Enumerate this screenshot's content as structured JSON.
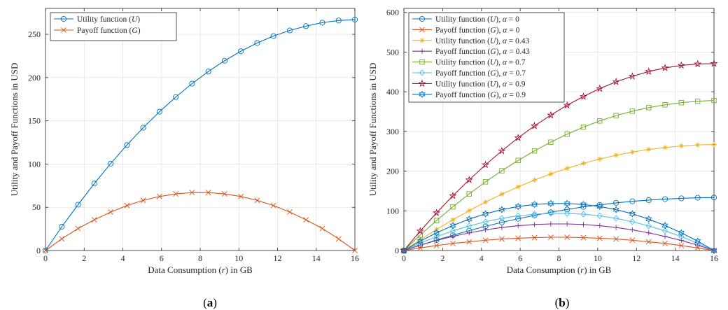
{
  "chart_data": [
    {
      "type": "line",
      "panel_label": "(a)",
      "xlabel": "Data Consumption (r) in GB",
      "ylabel": "Utility and Payoff Functions in USD",
      "xlim": [
        0,
        16
      ],
      "ylim": [
        0,
        280
      ],
      "xticks": [
        0,
        2,
        4,
        6,
        8,
        10,
        12,
        14,
        16
      ],
      "yticks": [
        0,
        50,
        100,
        150,
        200,
        250
      ],
      "grid": true,
      "legend_position": "top-left",
      "series": [
        {
          "name": "Utility function (U)",
          "color": "#0072bd",
          "marker": "circle",
          "x": [
            0,
            0.842,
            1.684,
            2.526,
            3.368,
            4.211,
            5.053,
            5.895,
            6.737,
            7.579,
            8.421,
            9.263,
            10.105,
            10.947,
            11.789,
            12.632,
            13.474,
            14.316,
            15.158,
            16
          ],
          "values": [
            0,
            27.5,
            53,
            77.5,
            100.5,
            122,
            142,
            160.5,
            177.5,
            193,
            207,
            219.5,
            230.5,
            240,
            248,
            254.5,
            259.5,
            263.5,
            266,
            267
          ]
        },
        {
          "name": "Payoff function (G)",
          "color": "#d95319",
          "marker": "x",
          "x": [
            0,
            0.842,
            1.684,
            2.526,
            3.368,
            4.211,
            5.053,
            5.895,
            6.737,
            7.579,
            8.421,
            9.263,
            10.105,
            10.947,
            11.789,
            12.632,
            13.474,
            14.316,
            15.158,
            16
          ],
          "values": [
            0,
            13.5,
            25.5,
            35.5,
            44.5,
            52,
            58,
            62.5,
            65.5,
            67,
            67,
            65.5,
            62.5,
            58,
            52,
            44.5,
            35.5,
            25.5,
            13.5,
            0
          ]
        }
      ]
    },
    {
      "type": "line",
      "panel_label": "(b)",
      "xlabel": "Data Consumption (r) in GB",
      "ylabel": "Utility and Payoff Functions in USD",
      "xlim": [
        0,
        16
      ],
      "ylim": [
        0,
        610
      ],
      "xticks": [
        0,
        2,
        4,
        6,
        8,
        10,
        12,
        14,
        16
      ],
      "yticks": [
        0,
        100,
        200,
        300,
        400,
        500,
        600
      ],
      "grid": true,
      "legend_position": "top-left",
      "series": [
        {
          "name": "Utility function (U), α = 0",
          "color": "#0072bd",
          "marker": "circle",
          "x": [
            0,
            0.842,
            1.684,
            2.526,
            3.368,
            4.211,
            5.053,
            5.895,
            6.737,
            7.579,
            8.421,
            9.263,
            10.105,
            10.947,
            11.789,
            12.632,
            13.474,
            14.316,
            15.158,
            16
          ],
          "values": [
            0,
            13.5,
            26.5,
            38.5,
            50,
            61,
            71,
            80,
            88.5,
            96.5,
            103.5,
            110,
            115,
            120,
            124,
            127,
            129.5,
            131.5,
            133,
            133.5
          ]
        },
        {
          "name": "Payoff function (G), α = 0",
          "color": "#d95319",
          "marker": "x",
          "x": [
            0,
            0.842,
            1.684,
            2.526,
            3.368,
            4.211,
            5.053,
            5.895,
            6.737,
            7.579,
            8.421,
            9.263,
            10.105,
            10.947,
            11.789,
            12.632,
            13.474,
            14.316,
            15.158,
            16
          ],
          "values": [
            0,
            6.5,
            12.5,
            18,
            22,
            26,
            29,
            31,
            32.5,
            33.5,
            33.5,
            32.5,
            31,
            29,
            26,
            22,
            18,
            12.5,
            6.5,
            0
          ]
        },
        {
          "name": "Utility function (U), α = 0.43",
          "color": "#edb120",
          "marker": "asterisk",
          "x": [
            0,
            0.842,
            1.684,
            2.526,
            3.368,
            4.211,
            5.053,
            5.895,
            6.737,
            7.579,
            8.421,
            9.263,
            10.105,
            10.947,
            11.789,
            12.632,
            13.474,
            14.316,
            15.158,
            16
          ],
          "values": [
            0,
            27.5,
            53,
            77.5,
            100.5,
            122,
            142,
            160.5,
            177.5,
            193,
            207,
            219.5,
            230.5,
            240,
            248,
            254.5,
            259.5,
            263.5,
            266,
            267
          ]
        },
        {
          "name": "Payoff function (G), α = 0.43",
          "color": "#7e2f8e",
          "marker": "plus",
          "x": [
            0,
            0.842,
            1.684,
            2.526,
            3.368,
            4.211,
            5.053,
            5.895,
            6.737,
            7.579,
            8.421,
            9.263,
            10.105,
            10.947,
            11.789,
            12.632,
            13.474,
            14.316,
            15.158,
            16
          ],
          "values": [
            0,
            13.5,
            25.5,
            35.5,
            44.5,
            52,
            58,
            62.5,
            65.5,
            67,
            67,
            65.5,
            62.5,
            58,
            52,
            44.5,
            35.5,
            25.5,
            13.5,
            0
          ]
        },
        {
          "name": "Utility function (U), α = 0.7",
          "color": "#77ac30",
          "marker": "square",
          "x": [
            0,
            0.842,
            1.684,
            2.526,
            3.368,
            4.211,
            5.053,
            5.895,
            6.737,
            7.579,
            8.421,
            9.263,
            10.105,
            10.947,
            11.789,
            12.632,
            13.474,
            14.316,
            15.158,
            16
          ],
          "values": [
            0,
            39,
            75.5,
            110,
            142.5,
            173,
            201,
            227,
            251,
            273,
            293,
            311,
            326.5,
            340,
            351,
            360,
            367,
            372.5,
            376,
            378
          ]
        },
        {
          "name": "Payoff function (G), α = 0.7",
          "color": "#4dbeee",
          "marker": "diamond",
          "x": [
            0,
            0.842,
            1.684,
            2.526,
            3.368,
            4.211,
            5.053,
            5.895,
            6.737,
            7.579,
            8.421,
            9.263,
            10.105,
            10.947,
            11.789,
            12.632,
            13.474,
            14.316,
            15.158,
            16
          ],
          "values": [
            0,
            18.5,
            35,
            49.5,
            62,
            72.5,
            81,
            87.5,
            91.5,
            93.5,
            93.5,
            91.5,
            87.5,
            81,
            72.5,
            62,
            49.5,
            35,
            18.5,
            0
          ]
        },
        {
          "name": "Utility function (U), α = 0.9",
          "color": "#a2142f",
          "marker": "star",
          "x": [
            0,
            0.842,
            1.684,
            2.526,
            3.368,
            4.211,
            5.053,
            5.895,
            6.737,
            7.579,
            8.421,
            9.263,
            10.105,
            10.947,
            11.789,
            12.632,
            13.474,
            14.316,
            15.158,
            16
          ],
          "values": [
            0,
            49,
            95,
            138,
            178,
            216,
            251,
            284,
            314,
            341,
            366,
            388,
            408,
            425,
            439,
            451,
            460,
            466.5,
            470,
            471
          ]
        },
        {
          "name": "Payoff function (G), α = 0.9",
          "color": "#0072bd",
          "marker": "hexagram",
          "x": [
            0,
            0.842,
            1.684,
            2.526,
            3.368,
            4.211,
            5.053,
            5.895,
            6.737,
            7.579,
            8.421,
            9.263,
            10.105,
            10.947,
            11.789,
            12.632,
            13.474,
            14.316,
            15.158,
            16
          ],
          "values": [
            0,
            23.5,
            44.5,
            63,
            79,
            92.5,
            103,
            111,
            116,
            118.5,
            118.5,
            116,
            111,
            103,
            92.5,
            79,
            63,
            44.5,
            23.5,
            0
          ]
        }
      ]
    }
  ]
}
